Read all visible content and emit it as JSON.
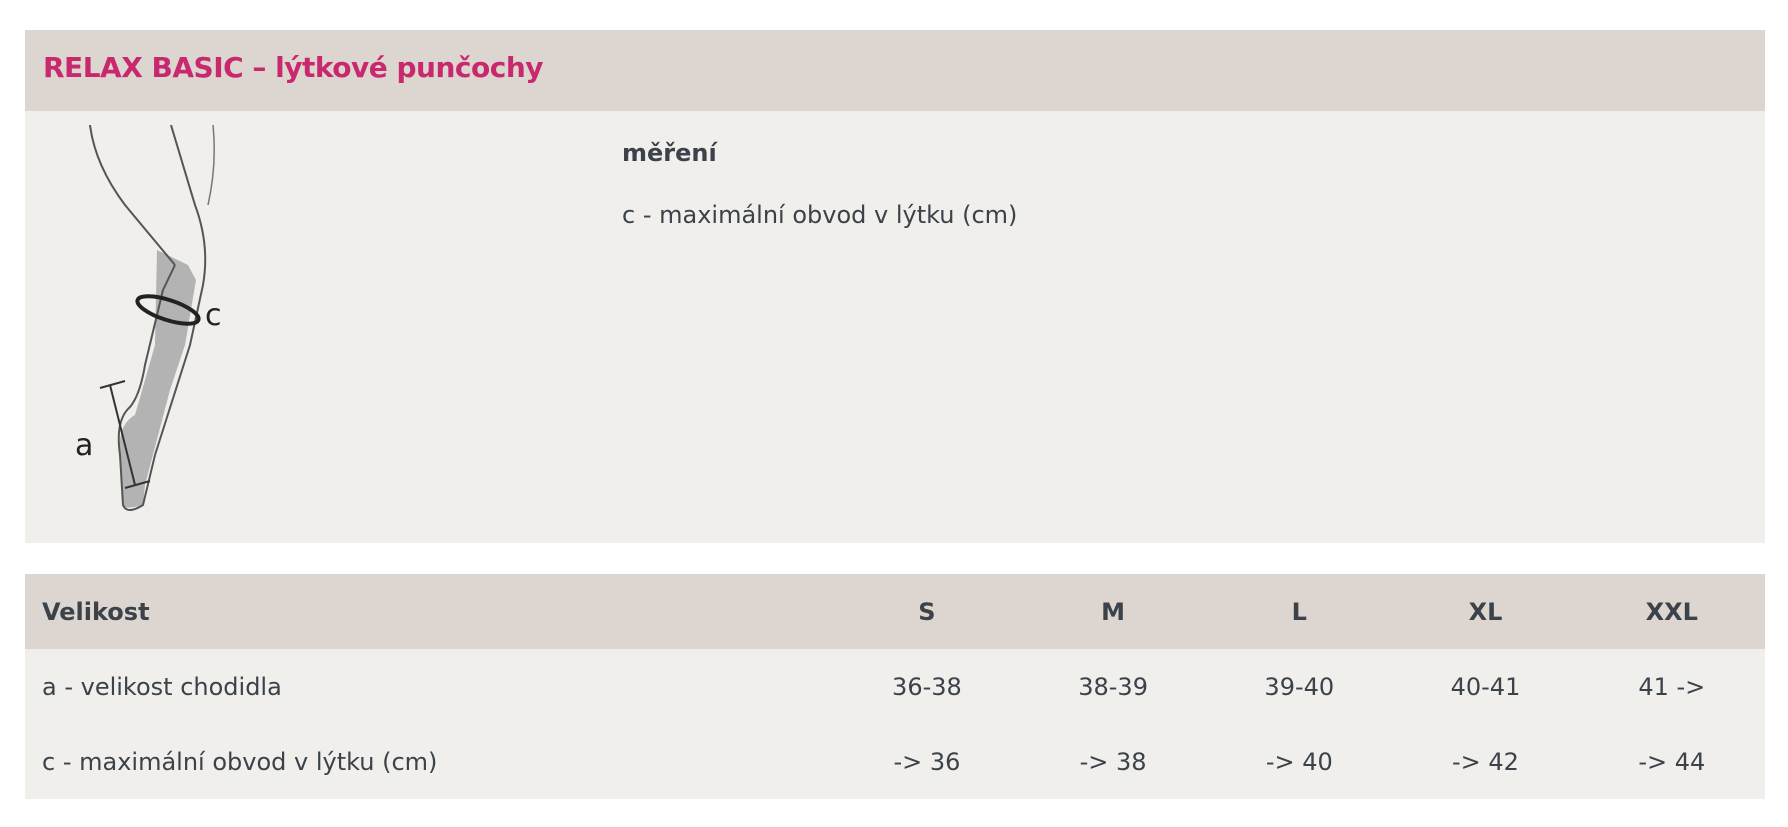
{
  "title": "RELAX BASIC – lýtkové punčochy",
  "illustration": {
    "labels": {
      "c": "c",
      "a": "a"
    }
  },
  "measurement": {
    "heading": "měření",
    "text": "c - maximální obvod v lýtku (cm)"
  },
  "table": {
    "headers": [
      "Velikost",
      "S",
      "M",
      "L",
      "XL",
      "XXL"
    ],
    "rows": [
      [
        "a - velikost chodidla",
        "36-38",
        "38-39",
        "39-40",
        "40-41",
        "41 ->"
      ],
      [
        "c - maximální obvod v lýtku (cm)",
        "-> 36",
        "-> 38",
        "-> 40",
        "-> 42",
        "-> 44"
      ]
    ]
  },
  "colors": {
    "accent": "#c8296e",
    "header_bg": "#ddd5cf",
    "panel_bg": "#f0efec",
    "text": "#3c424a"
  }
}
